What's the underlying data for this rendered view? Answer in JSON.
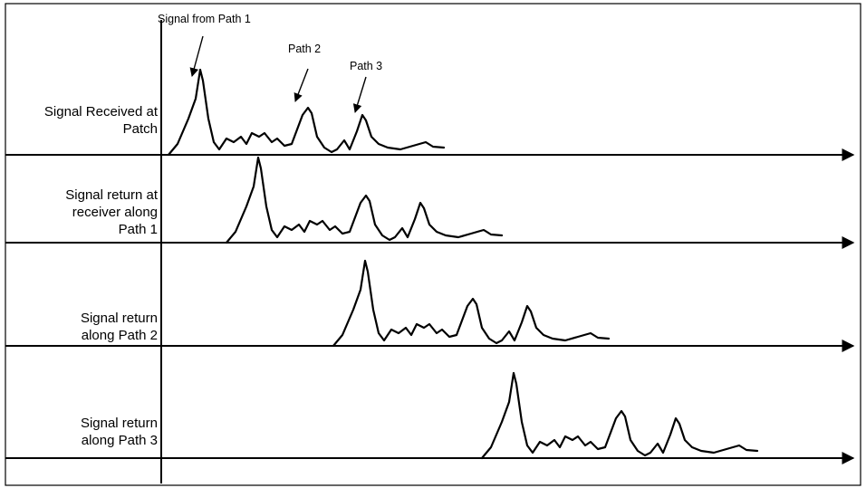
{
  "rows": [
    {
      "label_lines": [
        "Signal Received at",
        "Patch"
      ]
    },
    {
      "label_lines": [
        "Signal return at",
        "receiver along",
        "Path 1"
      ]
    },
    {
      "label_lines": [
        "Signal return",
        "along Path 2"
      ]
    },
    {
      "label_lines": [
        "Signal return",
        "along Path 3"
      ]
    }
  ],
  "annotations": {
    "path1": "Signal from Path 1",
    "path2": "Path 2",
    "path3": "Path 3"
  },
  "colors": {
    "line": "#000000",
    "background": "#ffffff"
  }
}
